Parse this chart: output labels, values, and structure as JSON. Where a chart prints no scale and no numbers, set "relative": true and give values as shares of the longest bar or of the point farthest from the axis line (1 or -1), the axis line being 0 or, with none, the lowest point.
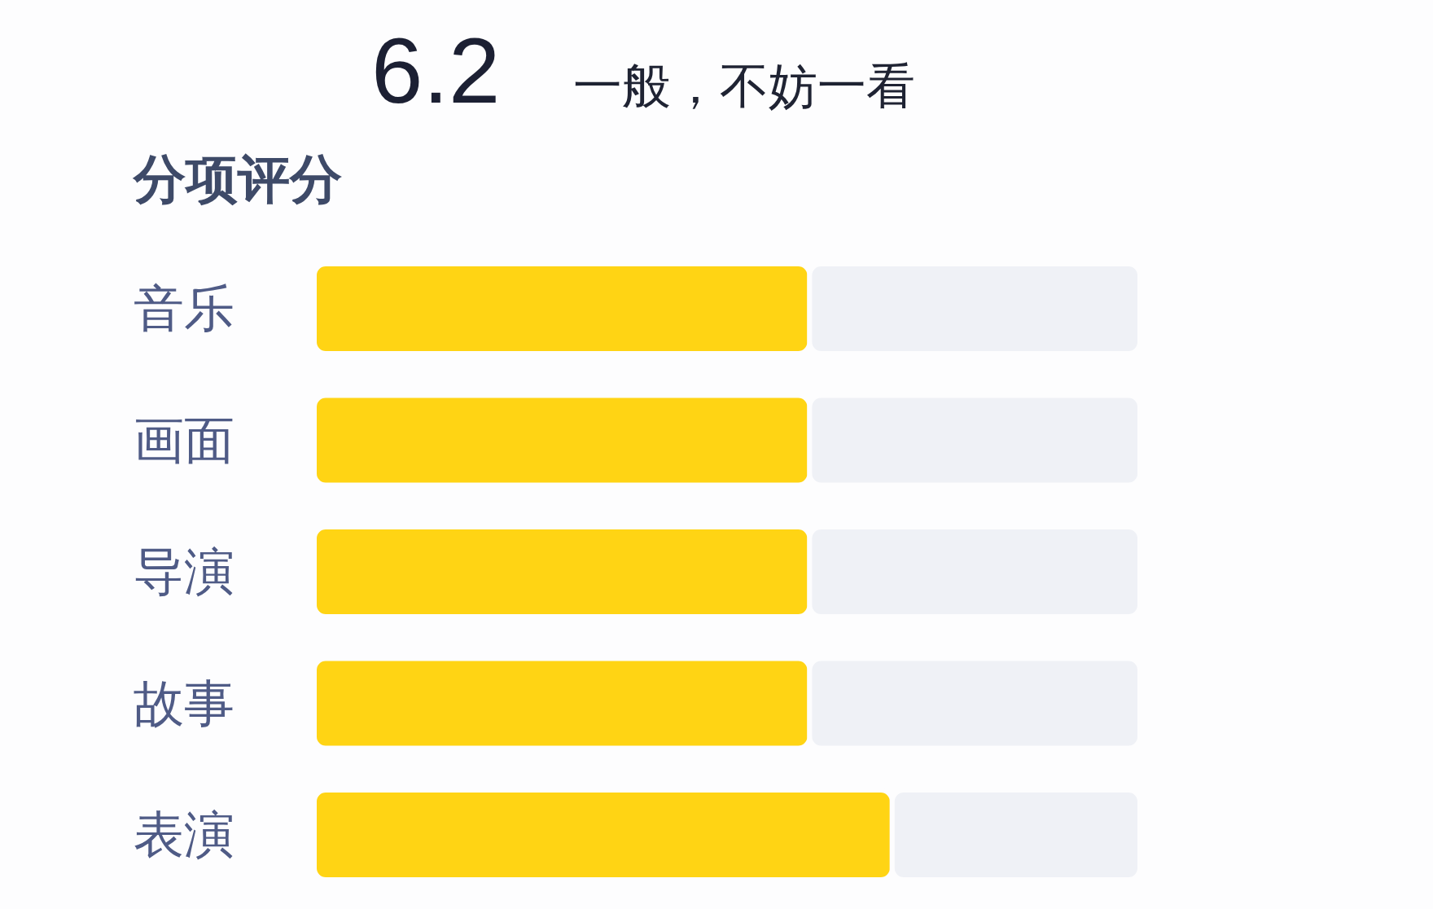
{
  "chart_data": {
    "type": "bar",
    "orientation": "horizontal",
    "stacked": true,
    "relative": true,
    "title": "分项评分",
    "annotations": [
      "6.2",
      "一般，不妨一看"
    ],
    "categories": [
      "音乐",
      "画面",
      "导演",
      "故事",
      "表演"
    ],
    "series": [
      {
        "color": "#ffd414",
        "values": [
          0.6,
          0.6,
          0.6,
          0.6,
          0.7
        ]
      },
      {
        "color": "#eff1f6",
        "values": [
          0.4,
          0.4,
          0.4,
          0.4,
          0.3
        ]
      }
    ]
  }
}
